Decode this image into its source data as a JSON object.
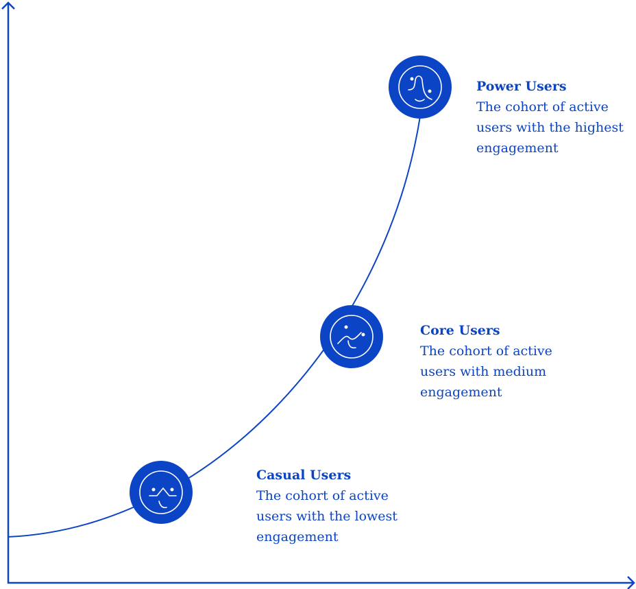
{
  "colors": {
    "accent": "#0b44c4",
    "background": "#ffffff"
  },
  "stages": [
    {
      "title": "Casual Users",
      "description": "The cohort of active users with the lowest engagement",
      "icon": "casual-face-icon"
    },
    {
      "title": "Core Users",
      "description": "The cohort of active users with medium engagement",
      "icon": "core-face-icon"
    },
    {
      "title": "Power Users",
      "description": "The cohort of active users with the highest engagement",
      "icon": "power-face-icon"
    }
  ]
}
